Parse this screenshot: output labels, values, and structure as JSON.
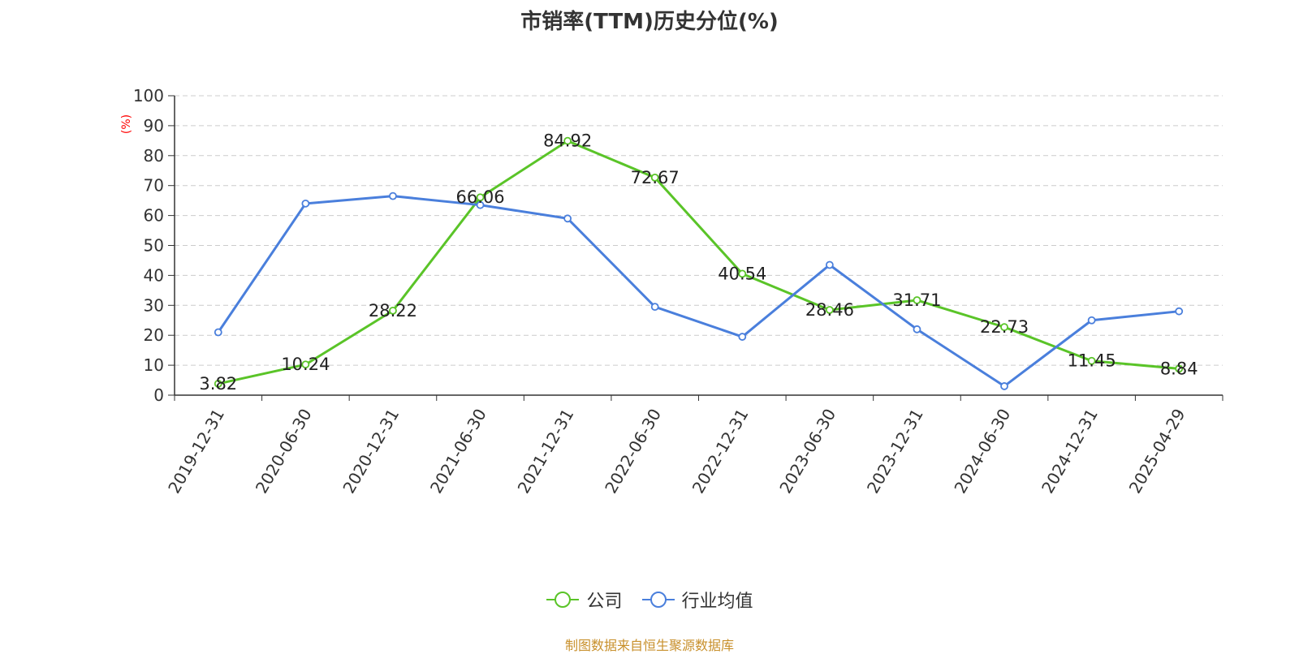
{
  "title": "市销率(TTM)历史分位(%)",
  "source": "制图数据来自恒生聚源数据库",
  "chart_data": {
    "type": "line",
    "title": "市销率(TTM)历史分位(%)",
    "ylabel": "(%)",
    "ylim": [
      0,
      100
    ],
    "yticks": [
      0,
      10,
      20,
      30,
      40,
      50,
      60,
      70,
      80,
      90,
      100
    ],
    "grid": true,
    "legend_position": "bottom",
    "categories": [
      "2019-12-31",
      "2020-06-30",
      "2020-12-31",
      "2021-06-30",
      "2021-12-31",
      "2022-06-30",
      "2022-12-31",
      "2023-06-30",
      "2023-12-31",
      "2024-06-30",
      "2024-12-31",
      "2025-04-29"
    ],
    "series": [
      {
        "name": "公司",
        "color": "#5ac428",
        "values": [
          3.82,
          10.24,
          28.22,
          66.06,
          84.92,
          72.67,
          40.54,
          28.46,
          31.71,
          22.73,
          11.45,
          8.84
        ],
        "labels": [
          "3.82",
          "10.24",
          "28.22",
          "66.06",
          "84.92",
          "72.67",
          "40.54",
          "28.46",
          "31.71",
          "22.73",
          "11.45",
          "8.84"
        ]
      },
      {
        "name": "行业均值",
        "color": "#4a7fdc",
        "values": [
          21,
          64,
          66.5,
          63.5,
          59,
          29.5,
          19.5,
          43.5,
          22,
          3,
          25,
          28
        ]
      }
    ]
  }
}
